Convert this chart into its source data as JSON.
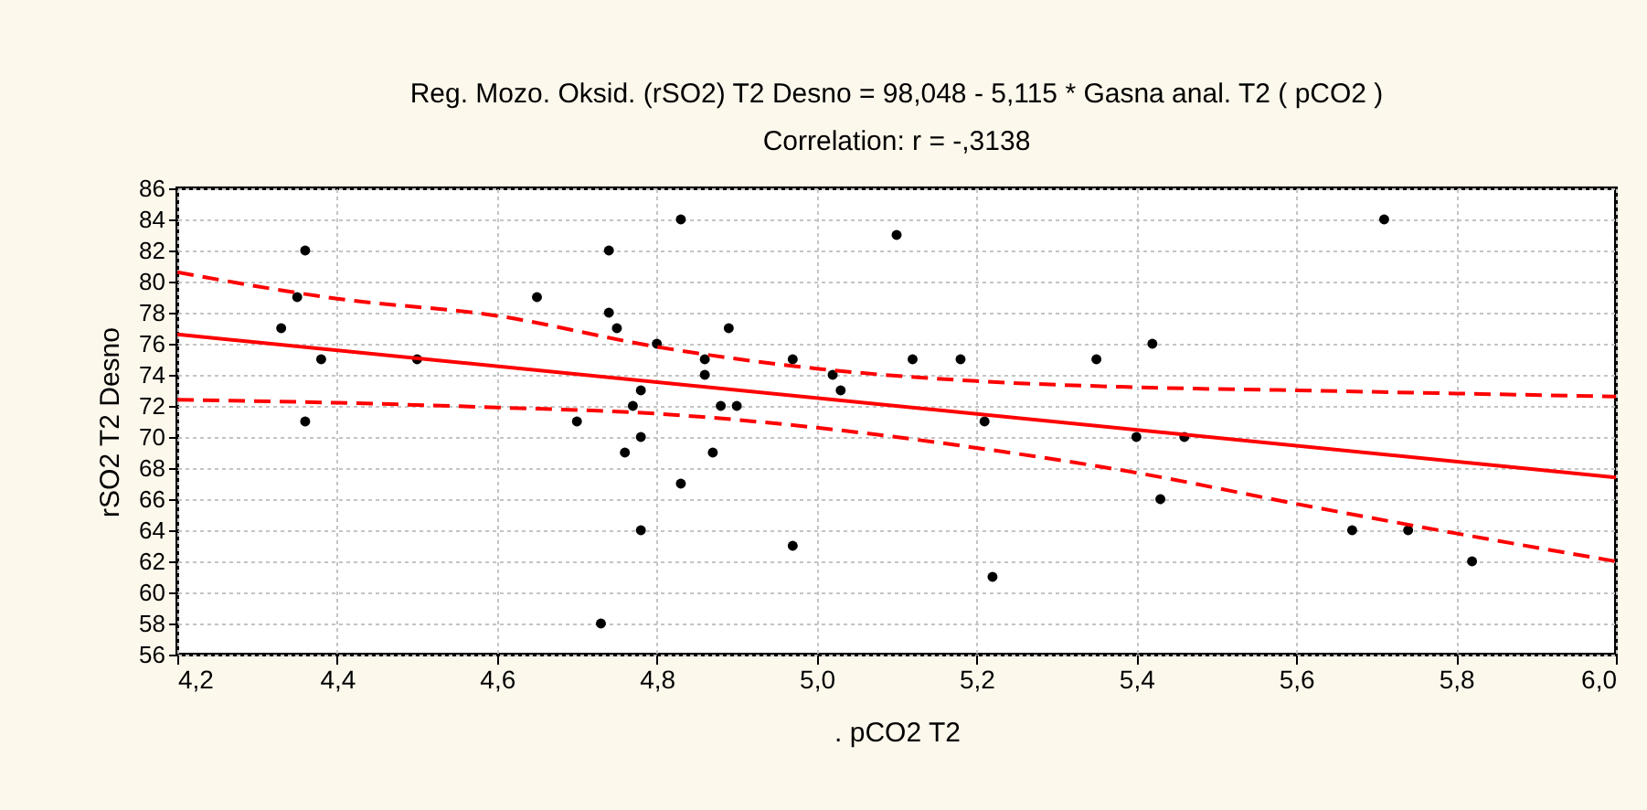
{
  "chart_data": {
    "type": "scatter",
    "title": "Reg. Mozo. Oksid. (rSO2)    T2  Desno = 98,048 - 5,115  * Gasna anal.  T2  ( pCO2 )",
    "subtitle": "Correlation: r = -,3138",
    "xlabel": ".   pCO2  T2",
    "ylabel": "rSO2    T2  Desno",
    "xlim": [
      4.2,
      6.0
    ],
    "xticks": [
      {
        "value": 4.2,
        "label": "4,2"
      },
      {
        "value": 4.4,
        "label": "4,4"
      },
      {
        "value": 4.6,
        "label": "4,6"
      },
      {
        "value": 4.8,
        "label": "4,8"
      },
      {
        "value": 5.0,
        "label": "5,0"
      },
      {
        "value": 5.2,
        "label": "5,2"
      },
      {
        "value": 5.4,
        "label": "5,4"
      },
      {
        "value": 5.6,
        "label": "5,6"
      },
      {
        "value": 5.8,
        "label": "5,8"
      },
      {
        "value": 6.0,
        "label": "6,0"
      }
    ],
    "ylim": [
      56,
      86
    ],
    "yticks": [
      56,
      58,
      60,
      62,
      64,
      66,
      68,
      70,
      72,
      74,
      76,
      78,
      80,
      82,
      84,
      86
    ],
    "grid": true,
    "series": [
      {
        "marker": "circle",
        "color": "#000000",
        "x": [
          4.33,
          4.35,
          4.36,
          4.36,
          4.38,
          4.5,
          4.65,
          4.7,
          4.73,
          4.74,
          4.74,
          4.75,
          4.78,
          4.77,
          4.78,
          4.76,
          4.78,
          4.8,
          4.83,
          4.86,
          4.86,
          4.89,
          4.88,
          4.9,
          4.87,
          4.83,
          4.97,
          4.97,
          5.1,
          5.02,
          5.03,
          5.12,
          5.18,
          5.21,
          5.22,
          5.35,
          5.4,
          5.42,
          5.46,
          5.43,
          5.71,
          5.67,
          5.74,
          5.82
        ],
        "values": [
          77,
          79,
          82,
          71,
          75,
          75,
          79,
          71,
          58,
          82,
          78,
          77,
          73,
          72,
          70,
          69,
          64,
          76,
          84,
          75,
          74,
          77,
          72,
          72,
          69,
          67,
          75,
          63,
          83,
          74,
          73,
          75,
          75,
          71,
          61,
          75,
          70,
          76,
          70,
          66,
          84,
          64,
          64,
          62
        ]
      },
      {
        "type": "line",
        "color": "#ff0000",
        "line_style": "solid",
        "x": [
          4.2,
          6.0
        ],
        "values": [
          76.6,
          67.4
        ]
      },
      {
        "type": "line",
        "color": "#ff0000",
        "line_style": "dashed",
        "x": [
          4.2,
          4.4,
          4.6,
          4.8,
          5.0,
          5.2,
          5.4,
          5.6,
          5.8,
          6.0
        ],
        "values": [
          80.6,
          78.9,
          77.8,
          75.8,
          74.4,
          73.6,
          73.2,
          73.0,
          72.8,
          72.6
        ]
      },
      {
        "type": "line",
        "color": "#ff0000",
        "line_style": "dashed",
        "x": [
          4.2,
          4.4,
          4.6,
          4.8,
          5.0,
          5.2,
          5.4,
          5.6,
          5.8,
          6.0
        ],
        "values": [
          72.4,
          72.2,
          71.9,
          71.5,
          70.6,
          69.3,
          67.7,
          65.7,
          63.8,
          62.0
        ]
      }
    ]
  }
}
